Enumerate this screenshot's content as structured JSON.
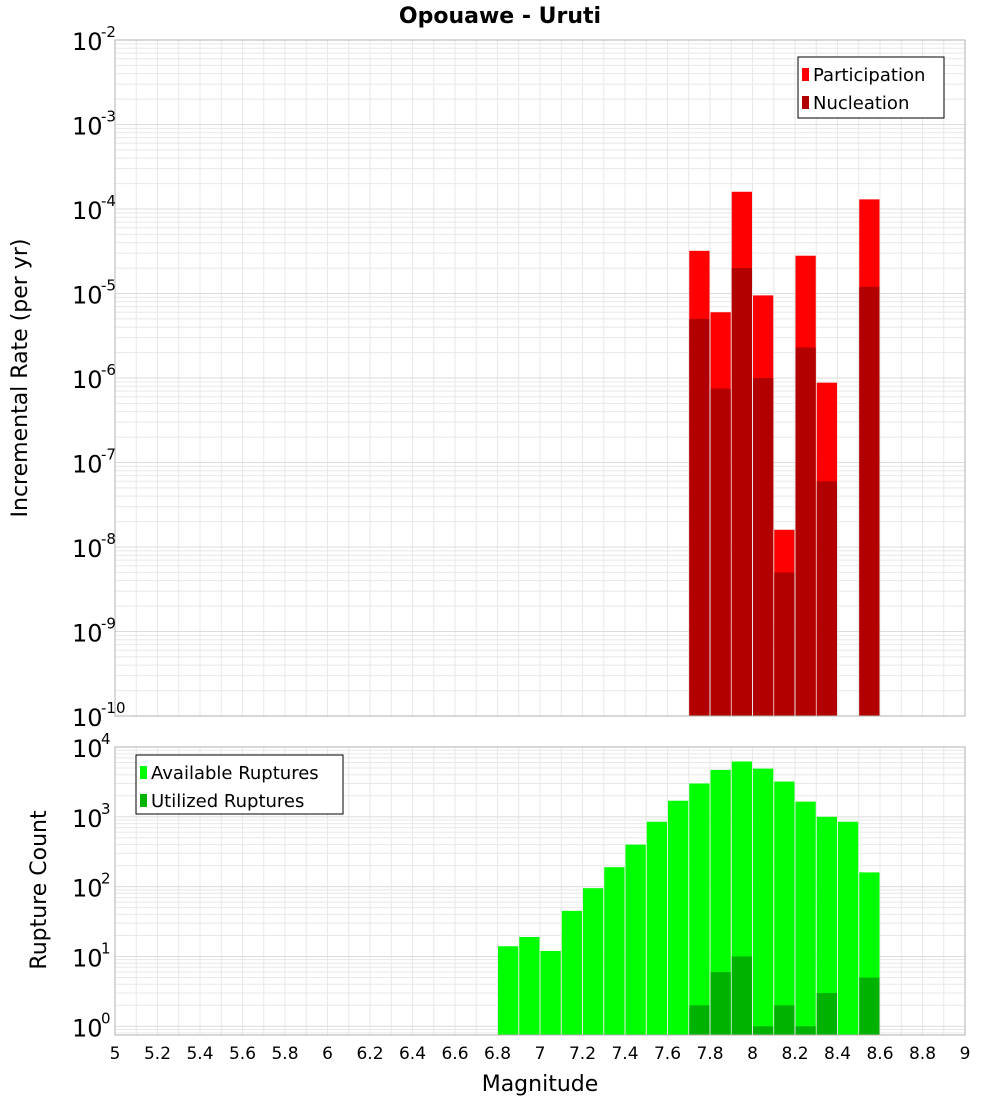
{
  "title": "Opouawe - Uruti",
  "xlabel": "Magnitude",
  "x_ticks": [
    "5",
    "5.2",
    "5.4",
    "5.6",
    "5.8",
    "6",
    "6.2",
    "6.4",
    "6.6",
    "6.8",
    "7",
    "7.2",
    "7.4",
    "7.6",
    "7.8",
    "8",
    "8.2",
    "8.4",
    "8.6",
    "8.8",
    "9"
  ],
  "colors": {
    "participation": "#ff0000",
    "nucleation": "#b20000",
    "available": "#00ff00",
    "utilized": "#00b200",
    "grid": "#e8e8e8",
    "frame": "#b0b0b0"
  },
  "chart_data": [
    {
      "type": "bar",
      "ylabel": "Incremental Rate (per yr)",
      "yscale": "log",
      "ylim": [
        1e-10,
        0.01
      ],
      "xlim": [
        5,
        9
      ],
      "y_tick_exponents": [
        "-10",
        "-9",
        "-8",
        "-7",
        "-6",
        "-5",
        "-4",
        "-3",
        "-2"
      ],
      "legend": {
        "position": "top-right",
        "entries": [
          "Participation",
          "Nucleation"
        ]
      },
      "grid": true,
      "x": [
        7.75,
        7.85,
        7.95,
        8.05,
        8.15,
        8.25,
        8.35,
        8.55
      ],
      "series": [
        {
          "name": "Participation",
          "values": [
            3.2e-05,
            6e-06,
            0.00016,
            9.5e-06,
            1.6e-08,
            2.8e-05,
            8.8e-07,
            0.00013
          ]
        },
        {
          "name": "Nucleation",
          "values": [
            5e-06,
            7.5e-07,
            2e-05,
            1e-06,
            5e-09,
            2.3e-06,
            6e-08,
            1.2e-05
          ]
        }
      ]
    },
    {
      "type": "bar",
      "ylabel": "Rupture Count",
      "yscale": "log",
      "ylim": [
        0.75,
        10000
      ],
      "xlim": [
        5,
        9
      ],
      "y_tick_exponents": [
        "0",
        "1",
        "2",
        "3",
        "4"
      ],
      "legend": {
        "position": "top-left",
        "entries": [
          "Available Ruptures",
          "Utilized Ruptures"
        ]
      },
      "grid": true,
      "x": [
        6.85,
        6.95,
        7.05,
        7.15,
        7.25,
        7.35,
        7.45,
        7.55,
        7.65,
        7.75,
        7.85,
        7.95,
        8.05,
        8.15,
        8.25,
        8.35,
        8.45,
        8.55
      ],
      "series": [
        {
          "name": "Available Ruptures",
          "values": [
            14,
            19,
            12,
            45,
            95,
            190,
            400,
            850,
            1700,
            3000,
            4700,
            6200,
            4900,
            3200,
            1650,
            1000,
            850,
            160
          ]
        },
        {
          "name": "Utilized Ruptures",
          "values": [
            null,
            null,
            null,
            null,
            null,
            null,
            null,
            null,
            null,
            2,
            6,
            10,
            1,
            2,
            1,
            3,
            null,
            5
          ]
        }
      ]
    }
  ]
}
